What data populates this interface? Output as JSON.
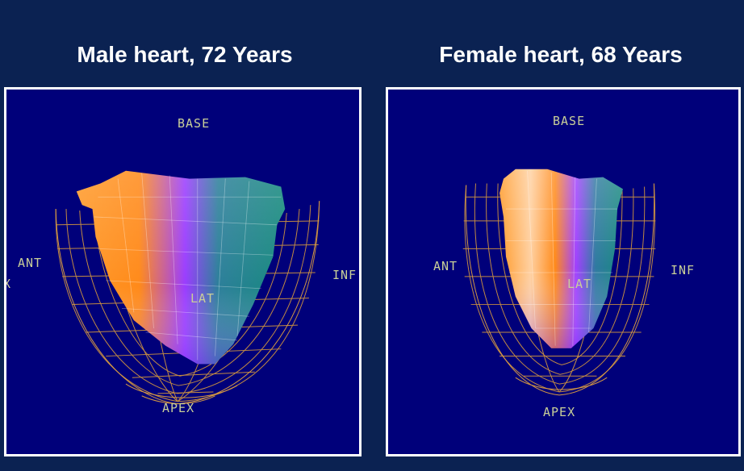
{
  "panels": [
    {
      "title": "Male heart, 72 Years",
      "labels": {
        "base": "BASE",
        "ant": "ANT",
        "inf": "INF",
        "lat": "LAT",
        "apex": "APEX",
        "edge": "X"
      }
    },
    {
      "title": "Female heart, 68 Years",
      "labels": {
        "base": "BASE",
        "ant": "ANT",
        "inf": "INF",
        "lat": "LAT",
        "apex": "APEX"
      }
    }
  ],
  "colors": {
    "background": "#0b2252",
    "panel_background": "#00007a",
    "panel_border": "#ffffff",
    "wireframe": "#e0a040",
    "label": "#c9cf98",
    "surface_orange": "#ff8c1a",
    "surface_purple": "#8a3cff",
    "surface_teal": "#1c8a80"
  }
}
